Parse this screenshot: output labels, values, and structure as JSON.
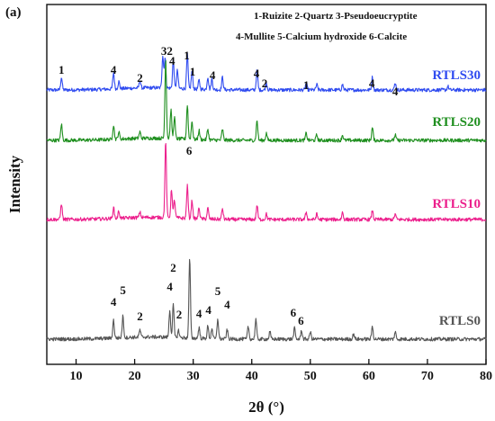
{
  "chart_data": {
    "type": "line",
    "panel_label": "(a)",
    "xlabel": "2θ (°)",
    "ylabel": "Intensity",
    "xlim": [
      5,
      80
    ],
    "xticks": [
      10,
      20,
      30,
      40,
      50,
      60,
      70,
      80
    ],
    "y_ticks_shown": false,
    "grid": false,
    "legend_lines": [
      "1-Ruizite 2-Quartz 3-Pseudoeucryptite",
      "4-Mullite  5-Calcium hydroxide 6-Calcite"
    ],
    "legend_placement": "top-right",
    "series": [
      {
        "name": "RTLS30",
        "color": "#2f4bf0",
        "offset": 3,
        "peaks": [
          [
            7.5,
            0.35
          ],
          [
            16.4,
            0.45
          ],
          [
            17.3,
            0.2
          ],
          [
            20.9,
            0.2
          ],
          [
            24.8,
            0.9
          ],
          [
            25.2,
            0.85
          ],
          [
            26.6,
            0.8
          ],
          [
            27.3,
            0.5
          ],
          [
            29.0,
            0.95
          ],
          [
            29.8,
            0.5
          ],
          [
            31.0,
            0.25
          ],
          [
            32.5,
            0.35
          ],
          [
            33.2,
            0.3
          ],
          [
            35.0,
            0.35
          ],
          [
            40.9,
            0.55
          ],
          [
            42.5,
            0.2
          ],
          [
            49.3,
            0.2
          ],
          [
            51.1,
            0.15
          ],
          [
            55.5,
            0.15
          ],
          [
            60.6,
            0.35
          ],
          [
            64.5,
            0.2
          ],
          [
            73.5,
            0.1
          ]
        ]
      },
      {
        "name": "RTLS20",
        "color": "#1f8f1f",
        "offset": 2,
        "peaks": [
          [
            7.5,
            0.45
          ],
          [
            16.4,
            0.4
          ],
          [
            17.3,
            0.2
          ],
          [
            20.9,
            0.18
          ],
          [
            25.3,
            2.2
          ],
          [
            26.2,
            0.8
          ],
          [
            26.8,
            0.6
          ],
          [
            29.0,
            0.95
          ],
          [
            29.8,
            0.5
          ],
          [
            31.0,
            0.25
          ],
          [
            32.5,
            0.3
          ],
          [
            35.0,
            0.3
          ],
          [
            40.9,
            0.55
          ],
          [
            42.5,
            0.2
          ],
          [
            49.3,
            0.2
          ],
          [
            51.1,
            0.15
          ],
          [
            55.5,
            0.15
          ],
          [
            60.6,
            0.35
          ],
          [
            64.5,
            0.15
          ]
        ]
      },
      {
        "name": "RTLS10",
        "color": "#ec1f8c",
        "offset": 1,
        "peaks": [
          [
            7.5,
            0.45
          ],
          [
            16.4,
            0.3
          ],
          [
            17.3,
            0.2
          ],
          [
            20.9,
            0.15
          ],
          [
            25.3,
            2.1
          ],
          [
            26.3,
            0.8
          ],
          [
            26.8,
            0.5
          ],
          [
            29.0,
            0.9
          ],
          [
            29.8,
            0.5
          ],
          [
            31.0,
            0.3
          ],
          [
            32.5,
            0.3
          ],
          [
            35.0,
            0.3
          ],
          [
            40.9,
            0.4
          ],
          [
            42.5,
            0.15
          ],
          [
            49.3,
            0.2
          ],
          [
            51.1,
            0.15
          ],
          [
            55.5,
            0.2
          ],
          [
            60.6,
            0.25
          ],
          [
            64.5,
            0.15
          ]
        ]
      },
      {
        "name": "RTLS0",
        "color": "#555555",
        "offset": 0,
        "peaks": [
          [
            16.4,
            0.5
          ],
          [
            18.0,
            0.6
          ],
          [
            20.9,
            0.2
          ],
          [
            26.0,
            0.75
          ],
          [
            26.6,
            0.9
          ],
          [
            27.5,
            0.2
          ],
          [
            29.4,
            2.2
          ],
          [
            31.0,
            0.3
          ],
          [
            32.5,
            0.35
          ],
          [
            33.2,
            0.3
          ],
          [
            34.2,
            0.55
          ],
          [
            35.8,
            0.25
          ],
          [
            39.4,
            0.35
          ],
          [
            40.7,
            0.55
          ],
          [
            43.1,
            0.2
          ],
          [
            47.3,
            0.3
          ],
          [
            48.5,
            0.25
          ],
          [
            50.0,
            0.2
          ],
          [
            57.4,
            0.15
          ],
          [
            60.6,
            0.35
          ],
          [
            64.5,
            0.2
          ]
        ]
      }
    ],
    "peak_labels": [
      {
        "series": "RTLS30",
        "items": [
          [
            "1",
            7.5
          ],
          [
            "4",
            16.4
          ],
          [
            "2",
            20.9
          ],
          [
            "3",
            25.0
          ],
          [
            "2",
            26.0
          ],
          [
            "4",
            26.4
          ],
          [
            "1",
            28.9
          ],
          [
            "1",
            29.9
          ],
          [
            "4",
            33.3
          ],
          [
            "4",
            40.8
          ],
          [
            "2",
            42.2
          ],
          [
            "1",
            49.3
          ],
          [
            "4",
            60.5
          ],
          [
            "4",
            64.5
          ]
        ]
      },
      {
        "series": "RTLS0",
        "items": [
          [
            "4",
            16.4
          ],
          [
            "5",
            18.0
          ],
          [
            "2",
            20.9
          ],
          [
            "4",
            26.0
          ],
          [
            "2",
            26.6
          ],
          [
            "2",
            27.6
          ],
          [
            "6",
            29.3
          ],
          [
            "4",
            31.0
          ],
          [
            "4",
            32.6
          ],
          [
            "5",
            34.2
          ],
          [
            "4",
            35.8
          ],
          [
            "6",
            47.1
          ],
          [
            "6",
            48.4
          ]
        ]
      }
    ]
  }
}
